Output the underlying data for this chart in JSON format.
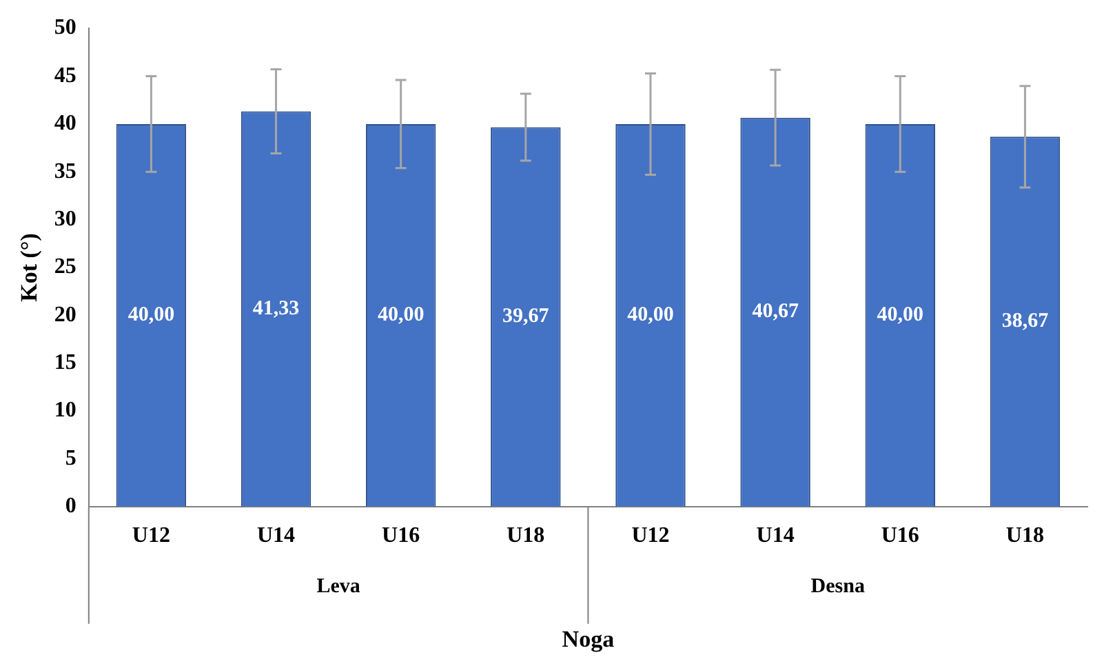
{
  "chart_data": {
    "type": "bar",
    "ylabel": "Kot (°)",
    "xlabel": "Noga",
    "categories": [
      "U12",
      "U14",
      "U16",
      "U18",
      "U12",
      "U14",
      "U16",
      "U18"
    ],
    "values": [
      40,
      41.33,
      40,
      39.67,
      40,
      40.67,
      40,
      38.67
    ],
    "value_labels": [
      "40,00",
      "41,33",
      "40,00",
      "39,67",
      "40,00",
      "40,67",
      "40,00",
      "38,67"
    ],
    "errors": [
      5,
      4.4,
      4.6,
      3.5,
      5.3,
      5,
      5,
      5.3
    ],
    "color": "#4472c4",
    "annotations": [
      "Leva",
      "Desna"
    ],
    "ylim": [
      0,
      50
    ],
    "yticks": [
      0,
      5,
      10,
      15,
      20,
      25,
      30,
      35,
      40,
      45,
      50
    ],
    "grid": false,
    "legend": false
  }
}
